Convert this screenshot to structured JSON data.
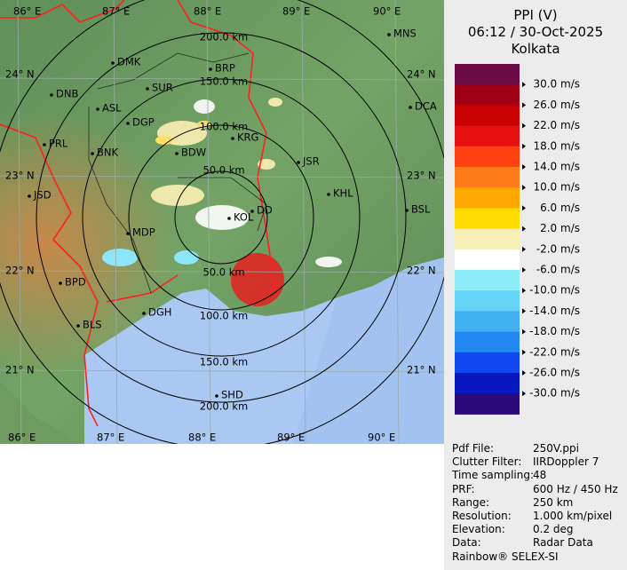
{
  "title": {
    "line1": "PPI (V)",
    "line2": "06:12 / 30-Oct-2025",
    "line3": "Kolkata"
  },
  "legend": {
    "colors": [
      "#6b0a45",
      "#a00015",
      "#c80000",
      "#e61010",
      "#ff4010",
      "#ff7a18",
      "#ffa800",
      "#ffdc00",
      "#f6eeb4",
      "#ffffff",
      "#8cecf8",
      "#64d4f8",
      "#40b0f0",
      "#2088f0",
      "#1048f0",
      "#0818c0",
      "#2a0a78"
    ],
    "labels": [
      "30.0 m/s",
      "26.0 m/s",
      "22.0 m/s",
      "18.0 m/s",
      "14.0 m/s",
      "10.0 m/s",
      "6.0 m/s",
      "2.0 m/s",
      "-2.0 m/s",
      "-6.0 m/s",
      "-10.0 m/s",
      "-14.0 m/s",
      "-18.0 m/s",
      "-22.0 m/s",
      "-26.0 m/s",
      "-30.0 m/s"
    ]
  },
  "info": [
    [
      "Pdf File:",
      "250V.ppi"
    ],
    [
      "Clutter Filter:",
      "IIRDoppler 7"
    ],
    [
      "Time sampling:",
      "48"
    ],
    [
      "PRF:",
      "600 Hz / 450 Hz"
    ],
    [
      "Range:",
      "250 km"
    ],
    [
      "Resolution:",
      "1.000 km/pixel"
    ],
    [
      "Elevation:",
      "0.2 deg"
    ],
    [
      "Data:",
      "Radar Data"
    ]
  ],
  "footer": "Rainbow® SELEX-SI",
  "map": {
    "lon_labels": [
      "86° E",
      "87° E",
      "88° E",
      "89° E",
      "90° E"
    ],
    "lat_labels": [
      "24° N",
      "23° N",
      "22° N",
      "21° N"
    ],
    "range_labels": [
      "200.0 km",
      "150.0 km",
      "100.0 km",
      "50.0 km",
      "50.0 km",
      "100.0 km",
      "150.0 km",
      "200.0 km"
    ],
    "stations": [
      "MNS",
      "DMK",
      "BRP",
      "SUR",
      "DNB",
      "ASL",
      "DCA",
      "DGP",
      "KRG",
      "PRL",
      "BNK",
      "BDW",
      "JSR",
      "KHL",
      "JSD",
      "BSL",
      "DD",
      "KOL",
      "MDP",
      "BPD",
      "DGH",
      "BLS",
      "SHD"
    ]
  }
}
